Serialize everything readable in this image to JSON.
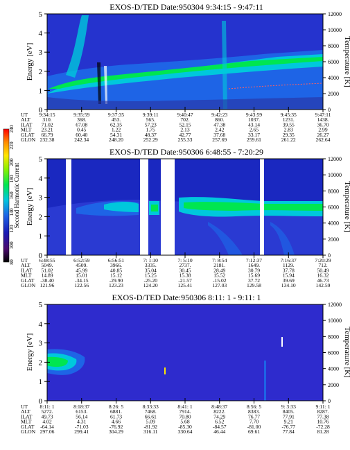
{
  "chart_data": [
    {
      "type": "heatmap",
      "title": "EXOS-D/TED   Date:950304   9:34:15 - 9:47:11",
      "ylabel": "Energy [eV]",
      "y2label": "Temperature [K]",
      "ylim": [
        0,
        5
      ],
      "yticks": [
        "0",
        "1",
        "2",
        "3",
        "4",
        "5"
      ],
      "y2lim": [
        0,
        12000
      ],
      "y2ticks": [
        "0",
        "2000",
        "4000",
        "6000",
        "8000",
        "10000",
        "12000"
      ],
      "row_labels": [
        "UT",
        "ALT",
        "ILAT",
        "MLT",
        "GLAT",
        "GLON"
      ],
      "columns": [
        [
          "9:34:15",
          "310.",
          "71.02",
          "23.21",
          "66.79",
          "232.38"
        ],
        [
          "9:35:59",
          "368.",
          "67.08",
          "0.45",
          "60.40",
          "242.34"
        ],
        [
          "9:37:35",
          "453.",
          "62.35",
          "1.22",
          "54.31",
          "248.20"
        ],
        [
          "9:39:11",
          "565.",
          "57.23",
          "1.75",
          "48.37",
          "252.29"
        ],
        [
          "9:40:47",
          "702.",
          "52.15",
          "2.13",
          "42.77",
          "255.33"
        ],
        [
          "9:42:23",
          "860.",
          "47.38",
          "2.42",
          "37.68",
          "257.69"
        ],
        [
          "9:43:59",
          "1037.",
          "43.14",
          "2.65",
          "33.17",
          "259.61"
        ],
        [
          "9:45:35",
          "1231.",
          "39.55",
          "2.83",
          "29.35",
          "261.22"
        ],
        [
          "9:47:11",
          "1438.",
          "36.70",
          "2.99",
          "26.27",
          "262.64"
        ]
      ]
    },
    {
      "type": "heatmap",
      "title": "EXOS-D/TED   Date:950306   6:48:55 - 7:20:29",
      "ylabel": "Energy [eV]",
      "y2label": "Temperature [K]",
      "ylim": [
        0,
        5
      ],
      "yticks": [
        "0",
        "1",
        "2",
        "3",
        "4",
        "5"
      ],
      "y2lim": [
        0,
        12000
      ],
      "y2ticks": [
        "0",
        "2000",
        "4000",
        "6000",
        "8000",
        "10000",
        "12000"
      ],
      "row_labels": [
        "UT",
        "ALT",
        "ILAT",
        "MLT",
        "GLAT",
        "GLON"
      ],
      "columns": [
        [
          "6:48:55",
          "5049.",
          "51.02",
          "14.89",
          "-38.40",
          "121.96"
        ],
        [
          "6:52:59",
          "4509.",
          "45.99",
          "15.01",
          "-34.15",
          "122.56"
        ],
        [
          "6:56:51",
          "3966.",
          "40.85",
          "15.12",
          "-29.90",
          "123.23"
        ],
        [
          "7: 1:10",
          "3335.",
          "35.04",
          "15.25",
          "-25.20",
          "124.20"
        ],
        [
          "7: 5:10",
          "2737.",
          "30.45",
          "15.38",
          "-21.57",
          "125.41"
        ],
        [
          "7: 8:54",
          "2181.",
          "28.49",
          "15.52",
          "-15.02",
          "127.03"
        ],
        [
          "7:12:37",
          "1649.",
          "30.79",
          "15.69",
          "37.72",
          "129.58"
        ],
        [
          "7:16:37",
          "1129.",
          "37.78",
          "15.94",
          "39.69",
          "134.10"
        ],
        [
          "7:20:29",
          "712.",
          "50.49",
          "16.32",
          "46.73",
          "142.59"
        ]
      ],
      "colorbar": {
        "label": "Second Harmonic Current",
        "ticks": [
          "80",
          "100",
          "120",
          "140",
          "160",
          "180",
          "200",
          "220",
          "240"
        ]
      }
    },
    {
      "type": "heatmap",
      "title": "EXOS-D/TED   Date:950306   8:11: 1 - 9:11: 1",
      "ylabel": "Energy [eV]",
      "y2label": "Temperature [K]",
      "ylim": [
        0,
        5
      ],
      "yticks": [
        "0",
        "1",
        "2",
        "3",
        "4",
        "5"
      ],
      "y2lim": [
        0,
        12000
      ],
      "y2ticks": [
        "0",
        "2000",
        "4000",
        "6000",
        "8000",
        "10000",
        "12000"
      ],
      "row_labels": [
        "UT",
        "ALT",
        "ILAT",
        "MLT",
        "GLAT",
        "GLON"
      ],
      "columns": [
        [
          "8:11: 1",
          "5272.",
          "49.73",
          "4.02",
          "-64.14",
          "297.06"
        ],
        [
          "8:18:37",
          "6153.",
          "56.14",
          "4.31",
          "-71.03",
          "299.41"
        ],
        [
          "8:26: 5",
          "6881.",
          "61.73",
          "4.66",
          "-76.92",
          "304.29"
        ],
        [
          "8:33:33",
          "7468.",
          "66.61",
          "5.09",
          "-81.92",
          "316.11"
        ],
        [
          "8:41: 1",
          "7914.",
          "70.80",
          "5.68",
          "-85.30",
          "330.64"
        ],
        [
          "8:48:37",
          "8222.",
          "74.29",
          "6.52",
          "-84.57",
          "46.44"
        ],
        [
          "8:56: 5",
          "8383.",
          "76.77",
          "7.70",
          "-81.00",
          "69.61"
        ],
        [
          "9: 3:33",
          "8405.",
          "77.91",
          "9.21",
          "-76.77",
          "77.84"
        ],
        [
          "9:11: 1",
          "8287.",
          "77.38",
          "10.76",
          "-72.28",
          "81.28"
        ]
      ]
    }
  ]
}
